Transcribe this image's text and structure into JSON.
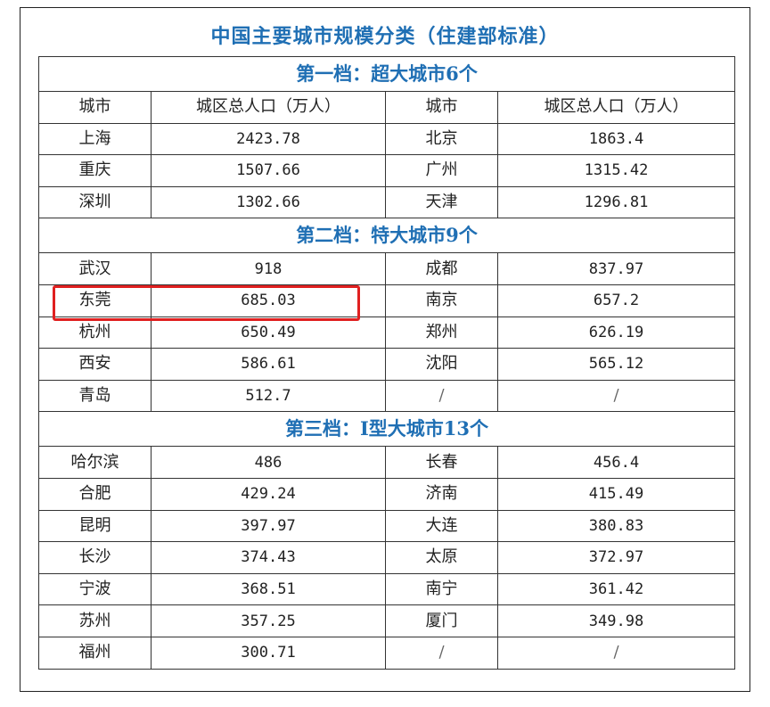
{
  "title": "中国主要城市规模分类（住建部标准）",
  "tiers": [
    {
      "label": "第一档：超大城市6个",
      "header": [
        "城市",
        "城区总人口（万人）",
        "城市",
        "城区总人口（万人）"
      ],
      "rows": [
        [
          "上海",
          "2423.78",
          "北京",
          "1863.4"
        ],
        [
          "重庆",
          "1507.66",
          "广州",
          "1315.42"
        ],
        [
          "深圳",
          "1302.66",
          "天津",
          "1296.81"
        ]
      ]
    },
    {
      "label": "第二档：特大城市9个",
      "rows": [
        [
          "武汉",
          "918",
          "成都",
          "837.97"
        ],
        [
          "东莞",
          "685.03",
          "南京",
          "657.2"
        ],
        [
          "杭州",
          "650.49",
          "郑州",
          "626.19"
        ],
        [
          "西安",
          "586.61",
          "沈阳",
          "565.12"
        ],
        [
          "青岛",
          "512.7",
          "/",
          "/"
        ]
      ]
    },
    {
      "label": "第三档：Ⅰ型大城市13个",
      "rows": [
        [
          "哈尔滨",
          "486",
          "长春",
          "456.4"
        ],
        [
          "合肥",
          "429.24",
          "济南",
          "415.49"
        ],
        [
          "昆明",
          "397.97",
          "大连",
          "380.83"
        ],
        [
          "长沙",
          "374.43",
          "太原",
          "372.97"
        ],
        [
          "宁波",
          "368.51",
          "南宁",
          "361.42"
        ],
        [
          "苏州",
          "357.25",
          "厦门",
          "349.98"
        ],
        [
          "福州",
          "300.71",
          "/",
          "/"
        ]
      ]
    }
  ],
  "colors": {
    "title": "#1f6fb4",
    "highlight": "#e02020"
  }
}
